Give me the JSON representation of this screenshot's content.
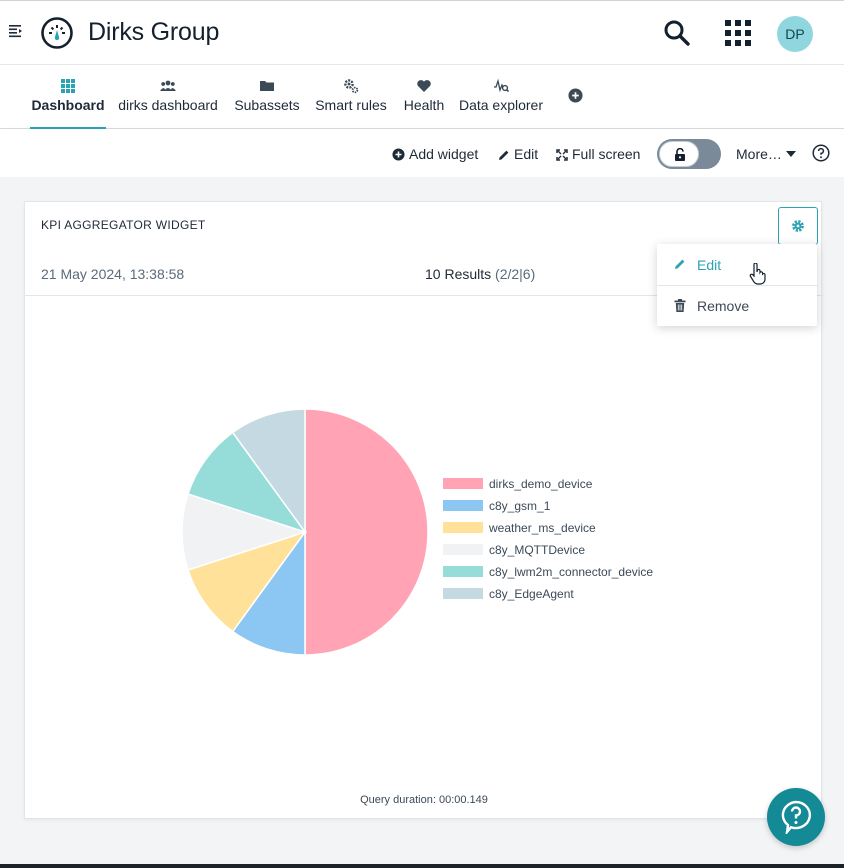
{
  "header": {
    "title": "Dirks Group",
    "avatar_initials": "DP"
  },
  "tabs": [
    {
      "label": "Dashboard",
      "icon": "dashboard-icon",
      "active": true
    },
    {
      "label": "dirks dashboard",
      "icon": "users-icon"
    },
    {
      "label": "Subassets",
      "icon": "folder-icon"
    },
    {
      "label": "Smart rules",
      "icon": "cogs-icon"
    },
    {
      "label": "Health",
      "icon": "heart-icon"
    },
    {
      "label": "Data explorer",
      "icon": "data-explorer-icon"
    }
  ],
  "toolbar": {
    "add_widget": "Add widget",
    "edit": "Edit",
    "full_screen": "Full screen",
    "more": "More…"
  },
  "widget": {
    "title": "KPI AGGREGATOR WIDGET",
    "timestamp": "21 May 2024, 13:38:58",
    "results_count": "10 Results",
    "results_detail": "(2/2|6)",
    "query_duration": "Query duration: 00:00.149"
  },
  "dropdown": {
    "edit": "Edit",
    "remove": "Remove"
  },
  "colors": {
    "accent": "#2aa3b5",
    "fab": "#138a96"
  },
  "chart_data": {
    "type": "pie",
    "categories": [
      "dirks_demo_device",
      "c8y_gsm_1",
      "weather_ms_device",
      "c8y_MQTTDevice",
      "c8y_lwm2m_connector_device",
      "c8y_EdgeAgent"
    ],
    "values": [
      5,
      1,
      1,
      1,
      1,
      1
    ],
    "colors": [
      "#ffa3b5",
      "#8cc6f2",
      "#ffe19a",
      "#f1f2f4",
      "#96dcd9",
      "#c5d9e2"
    ],
    "legend_position": "right"
  }
}
